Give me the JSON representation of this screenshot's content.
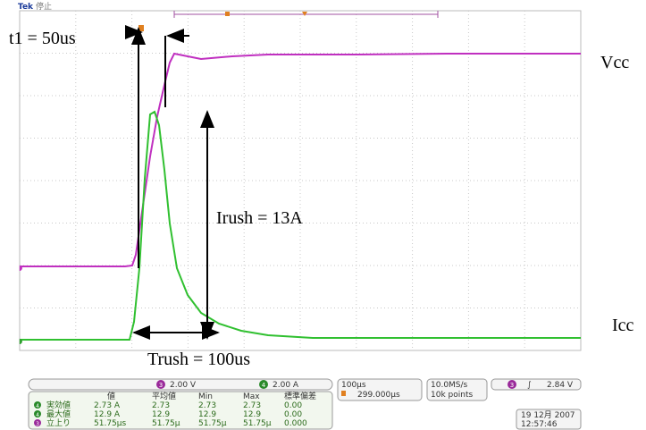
{
  "header": {
    "brand": "Tek",
    "state": "停止"
  },
  "annotations": {
    "t1": "t1 = 50us",
    "vcc": "Vcc",
    "irush": "Irush = 13A",
    "icc": "Icc",
    "trush": "Trush = 100us"
  },
  "readout": {
    "ch3": "3",
    "ch3_scale": "2.00 V",
    "ch4": "4",
    "ch4_scale": "2.00 A",
    "timebase": "100μs",
    "position": "299.000μs",
    "sample_rate": "10.0MS/s",
    "record": "10k points",
    "trig_ch": "3",
    "trig_level": "2.84 V"
  },
  "measurements": {
    "headers": [
      "値",
      "平均値",
      "Min",
      "Max",
      "標準偏差"
    ],
    "rows": [
      {
        "channel": "4",
        "name": "実効値",
        "cells": [
          "2.73 A",
          "2.73",
          "2.73",
          "2.73",
          "0.00"
        ]
      },
      {
        "channel": "4",
        "name": "最大値",
        "cells": [
          "12.9 A",
          "12.9",
          "12.9",
          "12.9",
          "0.00"
        ]
      },
      {
        "channel": "3",
        "name": "立上り",
        "cells": [
          "51.75μs",
          "51.75μ",
          "51.75μ",
          "51.75μ",
          "0.000"
        ]
      }
    ]
  },
  "timestamp": {
    "date": "19 12月 2007",
    "time": "12:57:46"
  }
}
